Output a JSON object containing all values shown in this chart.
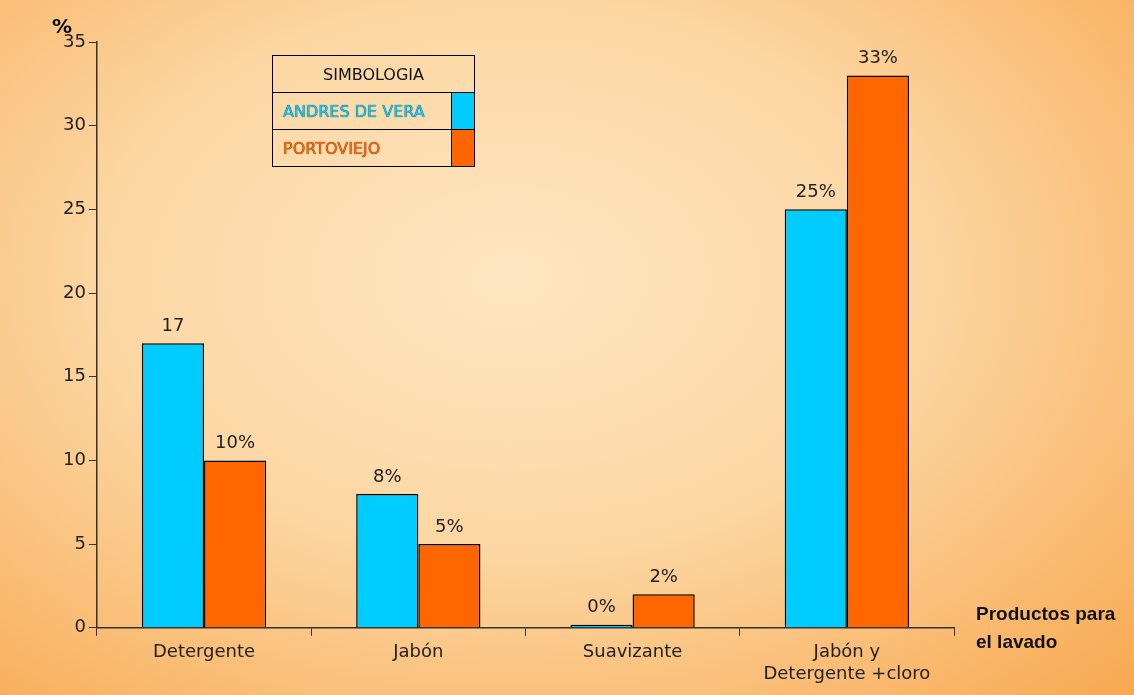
{
  "chart_data": {
    "type": "bar",
    "categories": [
      "Detergente",
      "Jabón",
      "Suavizante",
      "Jabón y\nDetergente +cloro"
    ],
    "series": [
      {
        "name": "ANDRES DE VERA",
        "color": "#00ccff",
        "values": [
          17,
          8,
          0,
          25
        ],
        "value_labels": [
          "17",
          "8%",
          "0%",
          "25%"
        ]
      },
      {
        "name": "PORTOVIEJO",
        "color": "#ff6600",
        "values": [
          10,
          5,
          2,
          33
        ],
        "value_labels": [
          "10%",
          "5%",
          "2%",
          "33%"
        ]
      }
    ],
    "ylim": [
      0,
      35
    ],
    "yticks": [
      0,
      5,
      10,
      15,
      20,
      25,
      30,
      35
    ],
    "ylabel": "%",
    "xlabel": "Productos para el lavado",
    "legend": "top left",
    "legend_title": "SIMBOLOGIA",
    "grid": false
  }
}
